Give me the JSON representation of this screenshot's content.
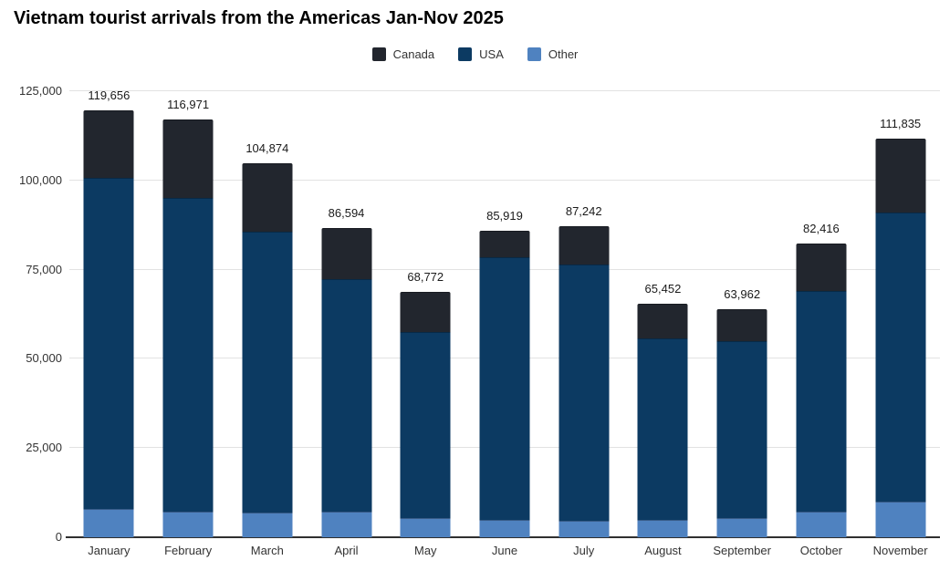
{
  "title": "Vietnam tourist arrivals from the Americas Jan-Nov 2025",
  "chart_data": {
    "type": "bar",
    "stacked": true,
    "title": "Vietnam tourist arrivals from the Americas Jan-Nov 2025",
    "categories": [
      "January",
      "February",
      "March",
      "April",
      "May",
      "June",
      "July",
      "August",
      "September",
      "October",
      "November"
    ],
    "series": [
      {
        "name": "Canada",
        "color": "#22262e",
        "values": [
          18956,
          21971,
          19274,
          14294,
          11272,
          7419,
          10742,
          9752,
          8962,
          13416,
          20835
        ]
      },
      {
        "name": "USA",
        "color": "#0c3a62",
        "values": [
          92700,
          87800,
          78700,
          65100,
          52100,
          73700,
          71900,
          50800,
          49600,
          61800,
          81000
        ]
      },
      {
        "name": "Other",
        "color": "#4f82c0",
        "values": [
          8000,
          7200,
          6900,
          7200,
          5400,
          4800,
          4600,
          4900,
          5400,
          7200,
          10000
        ]
      }
    ],
    "totals": [
      119656,
      116971,
      104874,
      86594,
      68772,
      85919,
      87242,
      65452,
      63962,
      82416,
      111835
    ],
    "total_labels": [
      "119,656",
      "116,971",
      "104,874",
      "86,594",
      "68,772",
      "85,919",
      "87,242",
      "65,452",
      "63,962",
      "82,416",
      "111,835"
    ],
    "legend": [
      "Canada",
      "USA",
      "Other"
    ],
    "legend_position": "top",
    "yticks": [
      0,
      25000,
      50000,
      75000,
      100000,
      125000
    ],
    "ytick_labels": [
      "0",
      "25,000",
      "50,000",
      "75,000",
      "100,000",
      "125,000"
    ],
    "ylim": [
      0,
      125000
    ],
    "xlabel": "",
    "ylabel": "",
    "grid": true
  }
}
